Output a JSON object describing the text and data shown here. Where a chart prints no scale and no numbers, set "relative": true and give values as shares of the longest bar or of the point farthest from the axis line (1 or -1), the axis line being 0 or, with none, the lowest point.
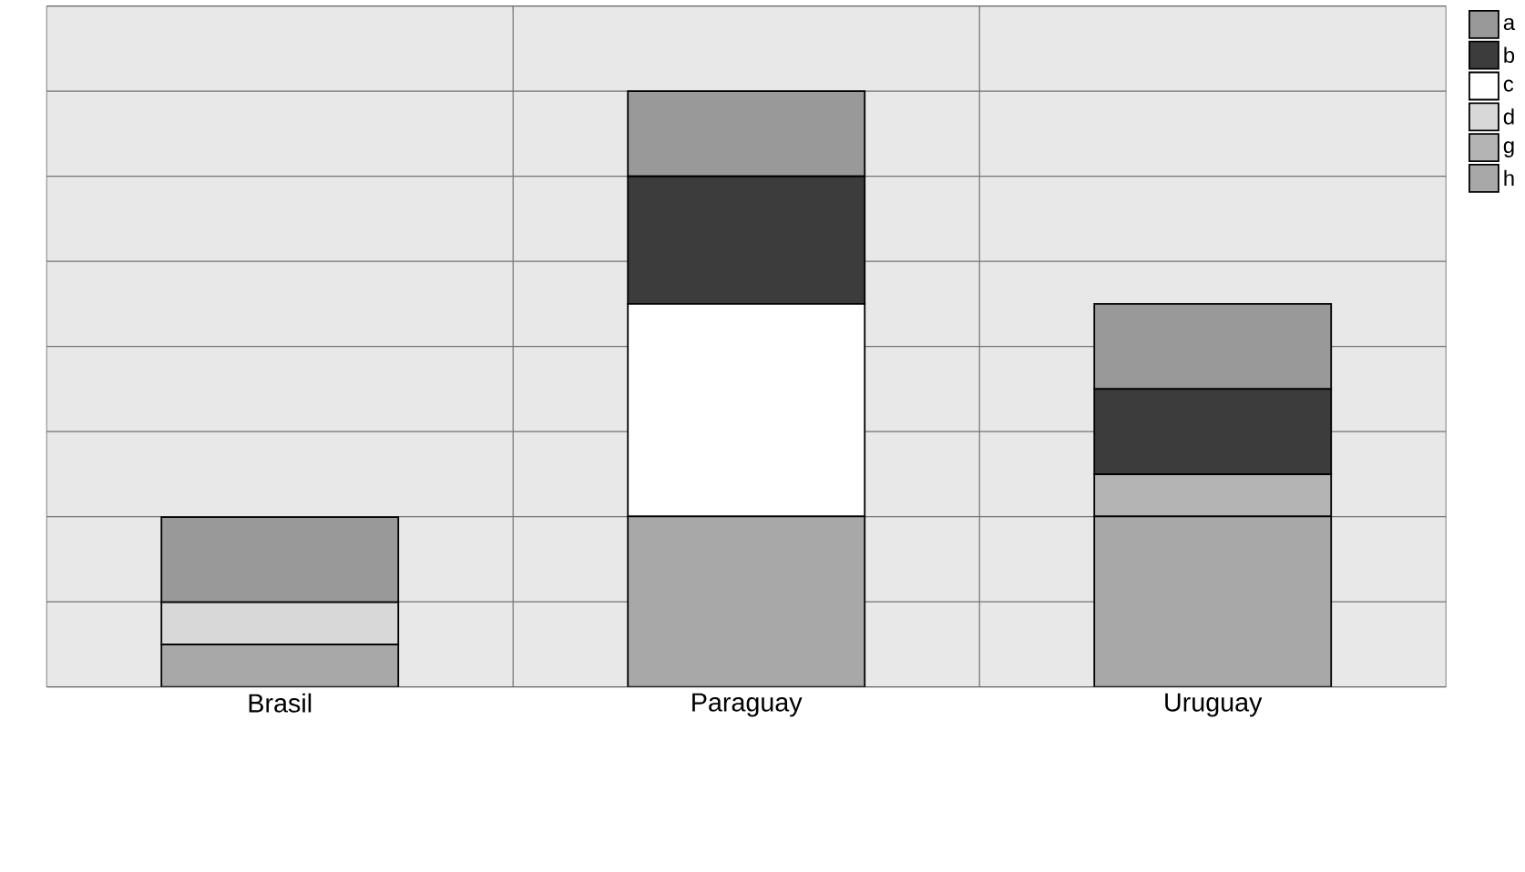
{
  "chart_data": {
    "type": "bar",
    "stacked": true,
    "relative": true,
    "grid": true,
    "legend": "top right",
    "categories": [
      "Brasil",
      "Paraguay",
      "Uruguay"
    ],
    "series": [
      {
        "name": "h",
        "color": "#a8a8a8",
        "values": [
          0.071,
          0.286,
          0.286
        ]
      },
      {
        "name": "g",
        "color": "#b4b4b4",
        "values": [
          0,
          0,
          0.071
        ]
      },
      {
        "name": "d",
        "color": "#d8d8d8",
        "values": [
          0.071,
          0,
          0
        ]
      },
      {
        "name": "c",
        "color": "#ffffff",
        "values": [
          0,
          0.357,
          0
        ]
      },
      {
        "name": "b",
        "color": "#3c3c3c",
        "values": [
          0,
          0.214,
          0.143
        ]
      },
      {
        "name": "a",
        "color": "#999999",
        "values": [
          0.143,
          0.143,
          0.143
        ]
      }
    ]
  }
}
